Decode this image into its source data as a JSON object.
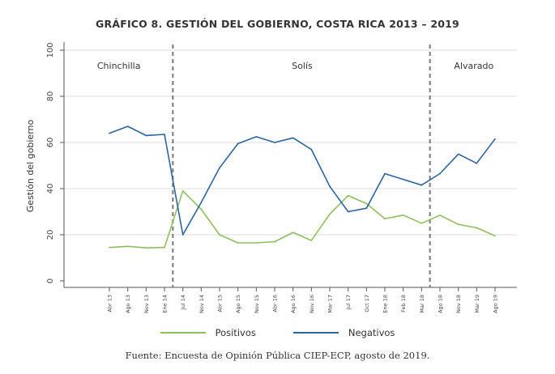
{
  "chart_data": {
    "type": "line",
    "title": "GRÁFICO 8. GESTIÓN DEL GOBIERNO, COSTA RICA 2013 – 2019",
    "xlabel": "",
    "ylabel": "Gestión del gobierno",
    "ylim": [
      0,
      100
    ],
    "yticks": [
      0,
      20,
      40,
      60,
      80,
      100
    ],
    "grid": true,
    "categories": [
      "Abr 13",
      "Ago 13",
      "Nov 13",
      "Ene 14",
      "Jul 14",
      "Nov 14",
      "Abr 15",
      "Ago 15",
      "Nov 15",
      "Abr 16",
      "Ago 16",
      "Nov 16",
      "Mar 17",
      "Jul 17",
      "Oct 17",
      "Ene 18",
      "Feb 18",
      "Mar 18",
      "Ago 18",
      "Nov 18",
      "Mar 19",
      "Ago 19"
    ],
    "series": [
      {
        "name": "Positivos",
        "color": "#8dc05a",
        "values": [
          14.5,
          15,
          14.3,
          14.5,
          39,
          31,
          20,
          16.5,
          16.5,
          17,
          21,
          17.5,
          29,
          37,
          33.5,
          27,
          28.5,
          25,
          28.5,
          24.5,
          23,
          19.5
        ]
      },
      {
        "name": "Negativos",
        "color": "#2a64a3",
        "values": [
          64,
          67,
          63,
          63.5,
          20,
          34,
          49,
          59.5,
          62.5,
          60,
          62,
          57,
          41,
          30,
          31.5,
          46.5,
          44,
          41.5,
          46.5,
          55,
          51,
          61.5
        ]
      }
    ],
    "periods": [
      {
        "label": "Chinchilla",
        "start_index": 0,
        "end_index": 3
      },
      {
        "label": "Solís",
        "start_index": 4,
        "end_index": 17
      },
      {
        "label": "Alvarado",
        "start_index": 18,
        "end_index": 21
      }
    ],
    "period_dividers_after_index": [
      3,
      17
    ],
    "legend_position": "bottom-center"
  },
  "source": "Fuente: Encuesta de Opinión Pública CIEP-ECP, agosto de 2019."
}
